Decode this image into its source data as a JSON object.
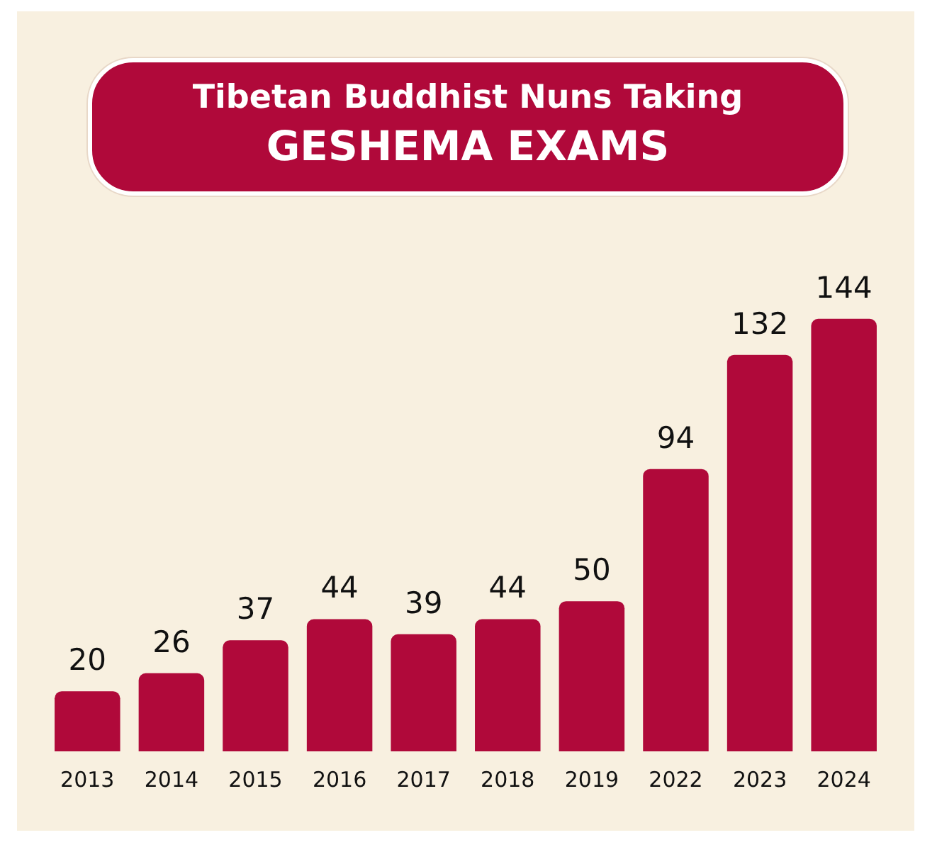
{
  "chart_data": {
    "type": "bar",
    "title": "Tibetan Buddhist Nuns Taking",
    "subtitle": "GESHEMA EXAMS",
    "categories": [
      "2013",
      "2014",
      "2015",
      "2016",
      "2017",
      "2018",
      "2019",
      "2022",
      "2023",
      "2024"
    ],
    "values": [
      20,
      26,
      37,
      44,
      39,
      44,
      50,
      94,
      132,
      144
    ],
    "color": "#b0093a",
    "data_labels": true,
    "tick_labels": "x"
  }
}
